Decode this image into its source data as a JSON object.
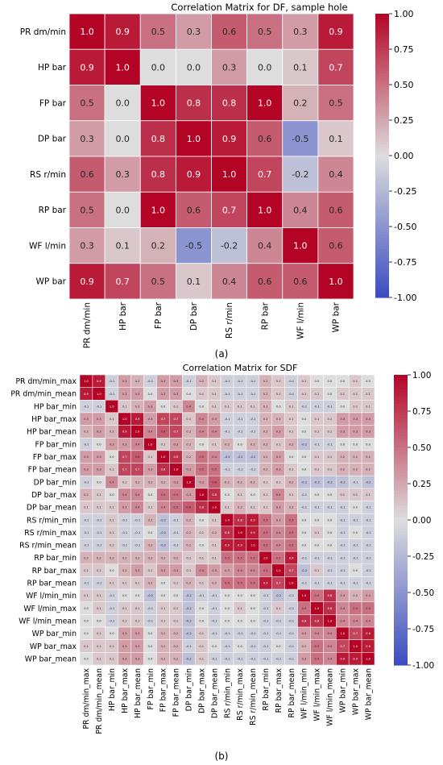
{
  "colors": {
    "low": "#3b4cc0",
    "mid": "#dddddd",
    "high": "#b40426",
    "grid_line": "#ffffff"
  },
  "chart_data": [
    {
      "type": "heatmap",
      "panel_label": "(a)",
      "title": "Correlation Matrix for DF, sample hole",
      "labels": [
        "PR dm/min",
        "HP bar",
        "FP bar",
        "DP bar",
        "RS r/min",
        "RP bar",
        "WF l/min",
        "WP bar"
      ],
      "values": [
        [
          1.0,
          0.9,
          0.5,
          0.3,
          0.6,
          0.5,
          0.3,
          0.9
        ],
        [
          0.9,
          1.0,
          0.0,
          0.0,
          0.3,
          0.0,
          0.1,
          0.7
        ],
        [
          0.5,
          0.0,
          1.0,
          0.8,
          0.8,
          1.0,
          0.2,
          0.5
        ],
        [
          0.3,
          0.0,
          0.8,
          1.0,
          0.9,
          0.6,
          -0.5,
          0.1
        ],
        [
          0.6,
          0.3,
          0.8,
          0.9,
          1.0,
          0.7,
          -0.2,
          0.4
        ],
        [
          0.5,
          0.0,
          1.0,
          0.6,
          0.7,
          1.0,
          0.4,
          0.6
        ],
        [
          0.3,
          0.1,
          0.2,
          -0.5,
          -0.2,
          0.4,
          1.0,
          0.6
        ],
        [
          0.9,
          0.7,
          0.5,
          0.1,
          0.4,
          0.6,
          0.6,
          1.0
        ]
      ],
      "colorbar_range": [
        -1.0,
        1.0
      ],
      "colorbar_ticks": [
        "1.00",
        "0.75",
        "0.50",
        "0.25",
        "0.00",
        "-0.25",
        "-0.50",
        "-0.75",
        "-1.00"
      ]
    },
    {
      "type": "heatmap",
      "panel_label": "(b)",
      "title": "Correlation Matrix for SDF",
      "labels": [
        "PR dm/min_max",
        "PR dm/min_mean",
        "HP bar_min",
        "HP bar_max",
        "HP bar_mean",
        "FP bar_min",
        "FP bar_max",
        "FP bar_mean",
        "DP bar_min",
        "DP bar_max",
        "DP bar_mean",
        "RS r/min_min",
        "RS r/min_max",
        "RS r/min_mean",
        "RP bar_min",
        "RP bar_max",
        "RP bar_mean",
        "WF l/min_min",
        "WF l/min_max",
        "WF l/min_mean",
        "WP bar_min",
        "WP bar_max",
        "WP bar_mean"
      ],
      "values": [
        [
          1.0,
          0.9,
          -0.1,
          0.3,
          0.2,
          -0.1,
          0.3,
          0.3,
          -0.1,
          0.2,
          0.1,
          -0.1,
          -0.1,
          -0.1,
          0.2,
          0.1,
          -0.1,
          0.1,
          0.0,
          0.0,
          0.0,
          0.1,
          0.0
        ],
        [
          0.9,
          1.0,
          -0.1,
          0.3,
          0.3,
          -0.0,
          0.3,
          0.3,
          -0.0,
          0.1,
          0.1,
          -0.1,
          -0.1,
          -0.1,
          0.2,
          0.1,
          -0.1,
          0.1,
          0.1,
          0.0,
          0.1,
          0.1,
          0.1
        ],
        [
          -0.1,
          -0.1,
          1.0,
          0.1,
          0.2,
          0.3,
          -0.0,
          0.1,
          0.4,
          0.0,
          0.1,
          0.1,
          0.1,
          0.1,
          0.2,
          0.0,
          0.1,
          -0.1,
          -0.1,
          -0.1,
          0.0,
          0.1,
          0.1
        ],
        [
          0.3,
          0.3,
          0.1,
          1.0,
          0.9,
          0.3,
          0.7,
          0.7,
          0.1,
          0.4,
          0.3,
          -0.1,
          -0.1,
          -0.1,
          0.2,
          0.2,
          0.1,
          0.0,
          0.1,
          0.1,
          0.3,
          0.3,
          0.3
        ],
        [
          0.2,
          0.3,
          0.2,
          0.9,
          1.0,
          0.4,
          0.6,
          0.7,
          0.2,
          0.4,
          0.4,
          -0.1,
          -0.1,
          -0.1,
          0.2,
          0.3,
          0.1,
          0.0,
          0.1,
          0.1,
          0.3,
          0.3,
          0.3
        ],
        [
          -0.1,
          -0.0,
          0.3,
          0.3,
          0.4,
          1.0,
          0.1,
          0.3,
          0.2,
          0.0,
          0.1,
          0.2,
          0.0,
          0.2,
          0.2,
          0.1,
          0.2,
          -0.2,
          -0.1,
          -0.1,
          0.0,
          0.0,
          0.0
        ],
        [
          0.3,
          0.3,
          -0.0,
          0.7,
          0.6,
          0.1,
          1.0,
          0.8,
          0.2,
          0.5,
          0.4,
          -0.2,
          -0.2,
          -0.2,
          0.2,
          0.3,
          0.0,
          0.0,
          0.1,
          0.1,
          0.2,
          0.2,
          0.2
        ],
        [
          0.3,
          0.3,
          0.1,
          0.7,
          0.7,
          0.3,
          0.8,
          1.0,
          0.3,
          0.5,
          0.5,
          -0.1,
          -0.1,
          -0.1,
          0.2,
          0.3,
          0.1,
          0.0,
          0.1,
          0.1,
          0.2,
          0.2,
          0.2
        ],
        [
          -0.1,
          -0.0,
          0.4,
          0.1,
          0.2,
          0.2,
          0.2,
          0.3,
          1.0,
          0.3,
          0.6,
          0.2,
          0.2,
          0.2,
          0.1,
          0.1,
          0.2,
          -0.2,
          -0.2,
          -0.2,
          -0.2,
          -0.1,
          -0.2
        ],
        [
          0.2,
          0.1,
          0.0,
          0.4,
          0.4,
          0.0,
          0.5,
          0.5,
          0.3,
          1.0,
          0.8,
          -0.0,
          0.1,
          0.0,
          0.1,
          0.4,
          0.1,
          -0.1,
          0.0,
          0.0,
          0.1,
          0.1,
          0.1
        ],
        [
          0.1,
          0.1,
          0.1,
          0.3,
          0.4,
          0.1,
          0.4,
          0.5,
          0.6,
          0.8,
          1.0,
          0.1,
          0.2,
          0.1,
          0.1,
          0.3,
          0.2,
          -0.1,
          -0.1,
          -0.1,
          -0.1,
          -0.0,
          -0.1
        ],
        [
          -0.1,
          -0.1,
          0.1,
          -0.1,
          -0.1,
          0.2,
          -0.2,
          -0.1,
          0.2,
          -0.0,
          0.1,
          1.0,
          0.8,
          0.9,
          0.5,
          0.3,
          0.5,
          0.0,
          0.0,
          0.0,
          -0.1,
          -0.1,
          -0.1
        ],
        [
          -0.1,
          -0.1,
          0.1,
          -0.1,
          -0.1,
          0.0,
          -0.2,
          -0.1,
          0.2,
          0.1,
          0.2,
          0.8,
          1.0,
          0.9,
          0.5,
          0.4,
          0.5,
          0.0,
          0.1,
          0.0,
          -0.1,
          -0.0,
          -0.1
        ],
        [
          -0.1,
          -0.1,
          0.1,
          -0.1,
          -0.1,
          0.2,
          -0.2,
          -0.1,
          0.2,
          0.0,
          0.1,
          0.9,
          0.9,
          1.0,
          0.5,
          0.4,
          0.5,
          0.0,
          0.0,
          0.0,
          -0.1,
          -0.1,
          -0.1
        ],
        [
          0.2,
          0.2,
          0.2,
          0.2,
          0.2,
          0.2,
          0.2,
          0.2,
          0.1,
          0.1,
          0.1,
          0.5,
          0.5,
          0.5,
          1.0,
          0.5,
          0.9,
          -0.1,
          -0.1,
          -0.1,
          -0.1,
          -0.1,
          -0.1
        ],
        [
          0.1,
          0.1,
          0.0,
          0.2,
          0.3,
          0.1,
          0.3,
          0.3,
          0.1,
          0.4,
          0.3,
          0.3,
          0.4,
          0.4,
          0.5,
          1.0,
          0.7,
          -0.2,
          0.1,
          -0.1,
          -0.1,
          -0.0,
          -0.1
        ],
        [
          -0.1,
          -0.1,
          0.1,
          0.1,
          0.1,
          0.2,
          0.0,
          0.1,
          0.2,
          0.1,
          0.2,
          0.5,
          0.5,
          0.5,
          0.9,
          0.7,
          1.0,
          -0.1,
          -0.1,
          -0.1,
          -0.1,
          -0.1,
          -0.1
        ],
        [
          0.1,
          0.1,
          -0.1,
          0.0,
          0.0,
          -0.2,
          0.0,
          0.0,
          -0.2,
          -0.1,
          -0.1,
          0.0,
          0.0,
          0.0,
          -0.1,
          -0.2,
          -0.1,
          1.0,
          0.5,
          0.8,
          0.3,
          0.2,
          0.3
        ],
        [
          0.0,
          0.1,
          -0.1,
          0.1,
          0.1,
          -0.1,
          0.1,
          0.1,
          -0.2,
          0.0,
          -0.1,
          0.0,
          0.1,
          0.0,
          -0.1,
          0.1,
          -0.1,
          0.5,
          1.0,
          0.8,
          0.4,
          0.5,
          0.5
        ],
        [
          0.0,
          0.0,
          -0.1,
          0.1,
          0.1,
          -0.1,
          0.1,
          0.1,
          -0.2,
          0.0,
          -0.1,
          0.0,
          0.0,
          0.0,
          -0.1,
          -0.1,
          -0.1,
          0.8,
          0.8,
          1.0,
          0.4,
          0.4,
          0.4
        ],
        [
          0.0,
          0.1,
          0.0,
          0.3,
          0.3,
          0.0,
          0.2,
          0.2,
          -0.2,
          0.1,
          -0.1,
          -0.1,
          -0.1,
          -0.1,
          -0.1,
          -0.1,
          -0.1,
          0.3,
          0.4,
          0.4,
          1.0,
          0.7,
          0.9
        ],
        [
          0.1,
          0.1,
          0.1,
          0.3,
          0.3,
          0.0,
          0.2,
          0.2,
          -0.1,
          0.1,
          -0.0,
          -0.1,
          -0.0,
          -0.1,
          -0.1,
          -0.0,
          -0.1,
          0.2,
          0.5,
          0.4,
          0.7,
          1.0,
          0.9
        ],
        [
          0.0,
          0.1,
          0.1,
          0.3,
          0.3,
          0.0,
          0.2,
          0.2,
          -0.2,
          0.1,
          -0.1,
          -0.1,
          -0.1,
          -0.1,
          -0.1,
          -0.1,
          -0.1,
          0.3,
          0.5,
          0.4,
          0.9,
          0.9,
          1.0
        ]
      ],
      "colorbar_range": [
        -1.0,
        1.0
      ],
      "colorbar_ticks": [
        "1.00",
        "0.75",
        "0.50",
        "0.25",
        "0.00",
        "-0.25",
        "-0.50",
        "-0.75",
        "-1.00"
      ]
    }
  ]
}
